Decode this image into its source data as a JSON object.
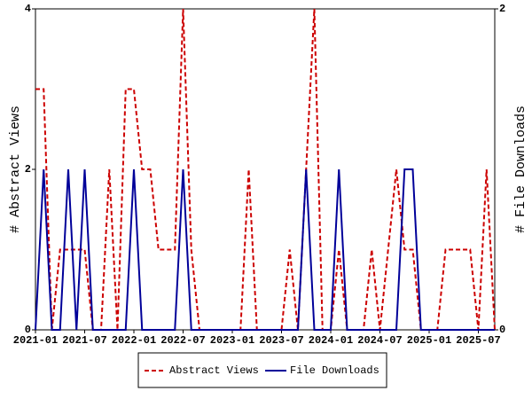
{
  "chart_data": {
    "type": "line",
    "x": [
      "2021-01",
      "2021-02",
      "2021-03",
      "2021-04",
      "2021-05",
      "2021-06",
      "2021-07",
      "2021-08",
      "2021-09",
      "2021-10",
      "2021-11",
      "2021-12",
      "2022-01",
      "2022-02",
      "2022-03",
      "2022-04",
      "2022-05",
      "2022-06",
      "2022-07",
      "2022-08",
      "2022-09",
      "2022-10",
      "2022-11",
      "2022-12",
      "2023-01",
      "2023-02",
      "2023-03",
      "2023-04",
      "2023-05",
      "2023-06",
      "2023-07",
      "2023-08",
      "2023-09",
      "2023-10",
      "2023-11",
      "2023-12",
      "2024-01",
      "2024-02",
      "2024-03",
      "2024-04",
      "2024-05",
      "2024-06",
      "2024-07",
      "2024-08",
      "2024-09",
      "2024-10",
      "2024-11",
      "2024-12",
      "2025-01",
      "2025-02",
      "2025-03",
      "2025-04",
      "2025-05",
      "2025-06",
      "2025-07",
      "2025-08",
      "2025-09"
    ],
    "xticks": [
      "2021-01",
      "2021-07",
      "2022-01",
      "2022-07",
      "2023-01",
      "2023-07",
      "2024-01",
      "2024-07",
      "2025-01",
      "2025-07"
    ],
    "ylabel": "# Abstract Views",
    "y2label": "# File Downloads",
    "ylim": [
      0,
      4
    ],
    "yticks": [
      0,
      2,
      4
    ],
    "y2lim": [
      0,
      2
    ],
    "y2ticks": [
      0,
      2
    ],
    "series": [
      {
        "name": "Abstract Views",
        "color": "#cc0000",
        "dash": true,
        "values": [
          3,
          3,
          0,
          1,
          1,
          1,
          1,
          0,
          0,
          2,
          0,
          3,
          3,
          2,
          2,
          1,
          1,
          1,
          4,
          1,
          0,
          0,
          0,
          0,
          0,
          0,
          2,
          0,
          0,
          0,
          0,
          1,
          0,
          2,
          4,
          0,
          0,
          1,
          0,
          0,
          0,
          1,
          0,
          1,
          2,
          1,
          1,
          0,
          0,
          0,
          1,
          1,
          1,
          1,
          0,
          2,
          0
        ]
      },
      {
        "name": "File Downloads",
        "color": "#000099",
        "axis": "y2",
        "values": [
          0,
          1,
          0,
          0,
          1,
          0,
          1,
          0,
          0,
          0,
          0,
          0,
          1,
          0,
          0,
          0,
          0,
          0,
          1,
          0,
          0,
          0,
          0,
          0,
          0,
          0,
          0,
          0,
          0,
          0,
          0,
          0,
          0,
          1,
          0,
          0,
          0,
          1,
          0,
          0,
          0,
          0,
          0,
          0,
          0,
          1,
          1,
          0,
          0,
          0,
          0,
          0,
          0,
          0,
          0,
          0,
          0
        ]
      }
    ],
    "legend": "bottom"
  }
}
